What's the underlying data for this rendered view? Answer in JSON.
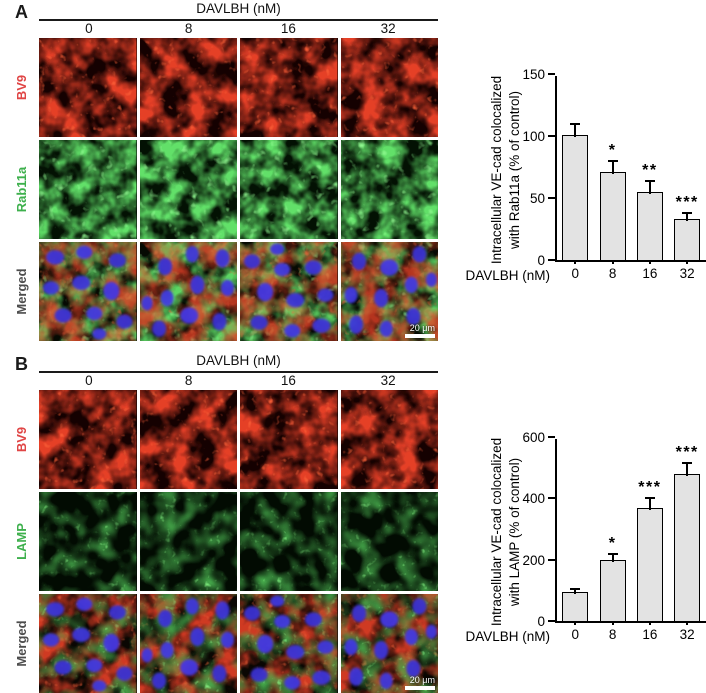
{
  "figure": {
    "panels": [
      {
        "label": "A",
        "header": "DAVLBH (nM)",
        "doses": [
          "0",
          "8",
          "16",
          "32"
        ],
        "rows": [
          {
            "label": "BV9",
            "color": "#e04545",
            "type": "red"
          },
          {
            "label": "Rab11a",
            "color": "#3eb04d",
            "type": "green-soft"
          },
          {
            "label": "Merged",
            "color": "#4d4d4d",
            "type": "merged-a"
          }
        ],
        "scale_bar": "20 μm",
        "channel_colors": {
          "red": "#cc1a0e",
          "green": "#2ec43c",
          "nuclei_blue": "#3c35d8"
        }
      },
      {
        "label": "B",
        "header": "DAVLBH (nM)",
        "doses": [
          "0",
          "8",
          "16",
          "32"
        ],
        "rows": [
          {
            "label": "BV9",
            "color": "#e04545",
            "type": "red"
          },
          {
            "label": "LAMP",
            "color": "#3eb04d",
            "type": "green-dot"
          },
          {
            "label": "Merged",
            "color": "#4d4d4d",
            "type": "merged-b"
          }
        ],
        "scale_bar": "20 μm",
        "channel_colors": {
          "red": "#cc1a0e",
          "green": "#2ec43c",
          "nuclei_blue": "#3c35d8"
        }
      }
    ]
  },
  "chart_data": [
    {
      "type": "bar",
      "title": "",
      "categories": [
        "0",
        "8",
        "16",
        "32"
      ],
      "values": [
        101,
        71,
        55,
        33
      ],
      "errors": [
        9,
        9,
        9,
        5
      ],
      "significance": [
        "",
        "*",
        "**",
        "***"
      ],
      "xlabel": "DAVLBH (nM)",
      "ylabel_lines": [
        "Intracellular VE-cad colocalized",
        "with Rab11a (% of control)"
      ],
      "ylim": [
        0,
        150
      ],
      "yticks": [
        0,
        50,
        100,
        150
      ],
      "grid": false,
      "legend": false,
      "bar_fill": "#e3e3e3",
      "bar_border": "#000000"
    },
    {
      "type": "bar",
      "title": "",
      "categories": [
        "0",
        "8",
        "16",
        "32"
      ],
      "values": [
        95,
        200,
        370,
        480
      ],
      "errors": [
        10,
        20,
        30,
        35
      ],
      "significance": [
        "",
        "*",
        "***",
        "***"
      ],
      "xlabel": "DAVLBH (nM)",
      "ylabel_lines": [
        "Intracellular VE-cad colocalized",
        "with LAMP (% of control)"
      ],
      "ylim": [
        0,
        600
      ],
      "yticks": [
        0,
        200,
        400,
        600
      ],
      "grid": false,
      "legend": false,
      "bar_fill": "#e3e3e3",
      "bar_border": "#000000"
    }
  ]
}
